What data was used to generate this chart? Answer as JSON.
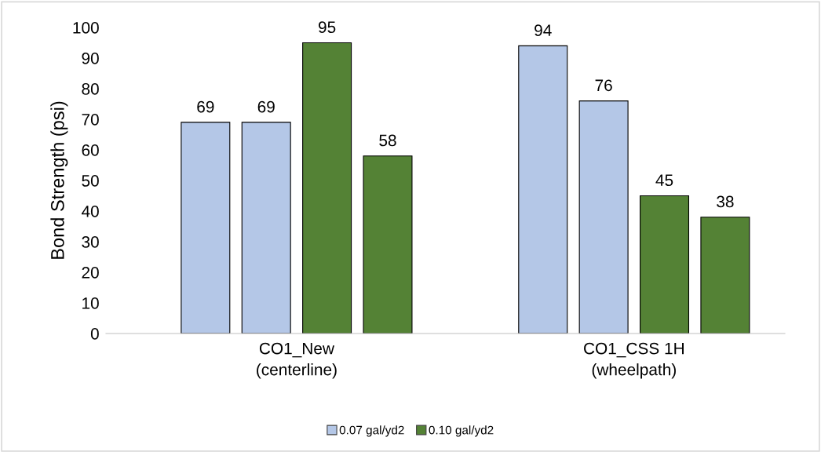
{
  "chart_data": {
    "type": "bar",
    "ylabel": "Bond Strength (psi)",
    "categories": [
      "CO1_New\n(centerline)",
      "CO1_CSS 1H\n(wheelpath)"
    ],
    "series": [
      {
        "name": "0.07 gal/yd2",
        "color": "#b4c7e7",
        "values": [
          69,
          94
        ]
      },
      {
        "color": "#b4c7e7",
        "values": [
          69,
          76
        ]
      },
      {
        "name": "0.10 gal/yd2",
        "color": "#548235",
        "values": [
          95,
          45
        ]
      },
      {
        "color": "#548235",
        "values": [
          58,
          38
        ]
      }
    ],
    "ylim": [
      0,
      100
    ],
    "yticks": [
      0,
      10,
      20,
      30,
      40,
      50,
      60,
      70,
      80,
      90,
      100
    ],
    "data_labels": true,
    "grid": false,
    "legend": "bottom"
  }
}
